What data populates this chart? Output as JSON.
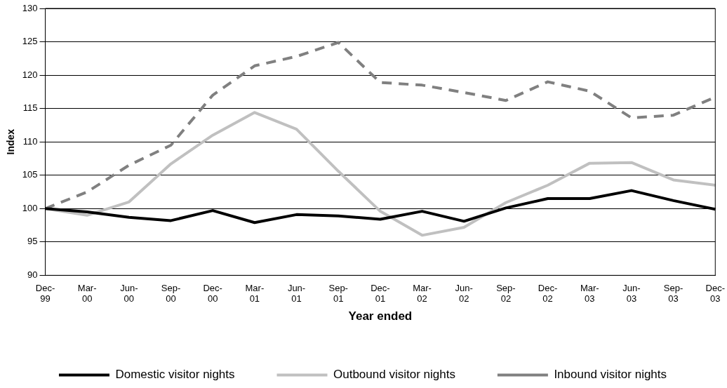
{
  "chart_data": {
    "type": "line",
    "xlabel": "Year ended",
    "ylabel": "Index",
    "categories": [
      "Dec-99",
      "Mar-00",
      "Jun-00",
      "Sep-00",
      "Dec-00",
      "Mar-01",
      "Jun-01",
      "Sep-01",
      "Dec-01",
      "Mar-02",
      "Jun-02",
      "Sep-02",
      "Dec-02",
      "Mar-03",
      "Jun-03",
      "Sep-03",
      "Dec-03"
    ],
    "series": [
      {
        "name": "Domestic visitor nights",
        "color": "#000000",
        "line_style": "solid",
        "values": [
          100,
          99.5,
          98.7,
          98.2,
          99.7,
          97.9,
          99.1,
          98.9,
          98.4,
          99.6,
          98.1,
          100.1,
          101.5,
          101.5,
          102.7,
          101.2,
          99.9
        ]
      },
      {
        "name": "Outbound visitor nights",
        "color": "#c0c0c0",
        "line_style": "solid",
        "values": [
          100,
          99,
          101,
          106.7,
          111,
          114.4,
          111.9,
          105.6,
          99.6,
          96,
          97.2,
          100.9,
          103.5,
          106.8,
          106.9,
          104.3,
          103.5
        ]
      },
      {
        "name": "Inbound visitor nights",
        "color": "#808080",
        "line_style": "dashed",
        "values": [
          100,
          102.5,
          106.5,
          109.5,
          117,
          121.4,
          122.8,
          124.9,
          118.9,
          118.5,
          117.4,
          116.2,
          119,
          117.6,
          113.6,
          114,
          116.7
        ]
      }
    ],
    "ylim": [
      90,
      130
    ],
    "yticks": [
      90,
      95,
      100,
      105,
      110,
      115,
      120,
      125,
      130
    ],
    "grid": "y",
    "legend": "bottom",
    "marker": "none"
  }
}
